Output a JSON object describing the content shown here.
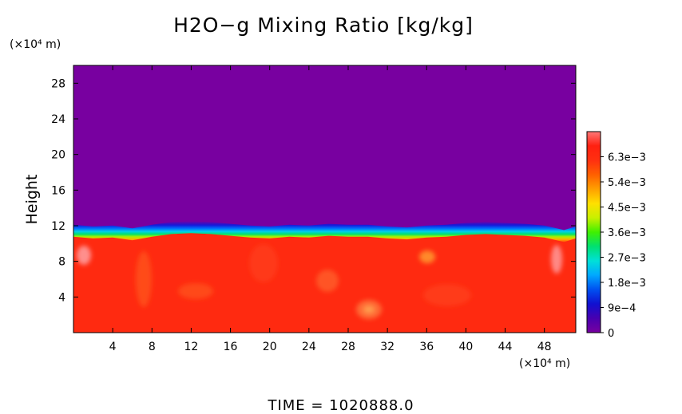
{
  "chart_data": {
    "type": "heatmap",
    "title": "H2O−g Mixing Ratio [kg/kg]",
    "ylabel": "Height",
    "x_unit_label": "(×10⁴ m)",
    "y_unit_label": "(×10⁴ m)",
    "x_range": [
      0,
      51.2
    ],
    "y_range": [
      0,
      30
    ],
    "x_ticks": [
      "4",
      "8",
      "12",
      "16",
      "20",
      "24",
      "28",
      "32",
      "36",
      "40",
      "44",
      "48"
    ],
    "x_tick_values": [
      4,
      8,
      12,
      16,
      20,
      24,
      28,
      32,
      36,
      40,
      44,
      48
    ],
    "y_ticks": [
      "4",
      "8",
      "12",
      "16",
      "20",
      "24",
      "28"
    ],
    "y_tick_values": [
      4,
      8,
      12,
      16,
      20,
      24,
      28
    ],
    "colorbar": {
      "range": [
        0,
        0.0072
      ],
      "tick_labels": [
        "0",
        "9e−4",
        "1.8e−3",
        "2.7e−3",
        "3.6e−3",
        "4.5e−3",
        "5.4e−3",
        "6.3e−3"
      ],
      "tick_values": [
        0,
        0.0009,
        0.0018,
        0.0027,
        0.0036,
        0.0045,
        0.0054,
        0.0063
      ],
      "colors": [
        "#7800a0",
        "#4800b0",
        "#1010d0",
        "#0050f0",
        "#00a8ff",
        "#00e0d8",
        "#00e070",
        "#40f000",
        "#c8f000",
        "#ffe000",
        "#ffa000",
        "#ff6000",
        "#ff3010",
        "#ff2010",
        "#ff7878"
      ]
    },
    "field": {
      "lower_layer_value": 0.0066,
      "upper_layer_value": 0.0,
      "interface_height_profile": {
        "x": [
          0,
          2,
          4,
          6,
          8,
          10,
          12,
          14,
          16,
          18,
          20,
          22,
          24,
          26,
          28,
          30,
          32,
          34,
          36,
          38,
          40,
          42,
          44,
          46,
          48,
          50,
          51.2
        ],
        "height": [
          11.4,
          11.2,
          11.3,
          11.0,
          11.4,
          11.7,
          11.8,
          11.7,
          11.5,
          11.3,
          11.2,
          11.4,
          11.3,
          11.5,
          11.4,
          11.4,
          11.2,
          11.1,
          11.3,
          11.4,
          11.6,
          11.7,
          11.6,
          11.5,
          11.3,
          10.8,
          11.2
        ]
      }
    }
  },
  "footer": {
    "time_label": "TIME  =  1020888.0"
  }
}
